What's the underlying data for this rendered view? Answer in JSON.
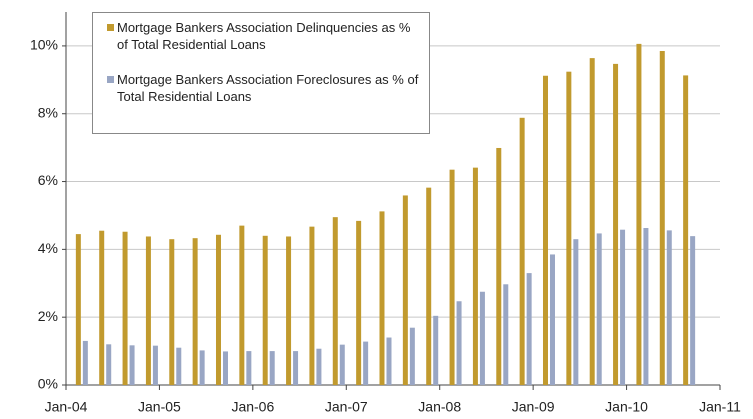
{
  "chart_data": {
    "type": "bar",
    "categories": [
      null,
      null,
      null,
      null,
      null,
      null,
      null,
      null,
      null,
      null,
      null,
      null,
      null,
      null,
      null,
      null,
      null,
      null,
      null,
      null,
      null,
      null,
      null,
      null,
      null,
      null,
      null
    ],
    "series": [
      {
        "name": "Mortgage Bankers Association Delinquencies as % of Total Residential Loans",
        "color": "#c19a2e",
        "values": [
          4.45,
          4.55,
          4.52,
          4.38,
          4.3,
          4.33,
          4.43,
          4.7,
          4.4,
          4.38,
          4.67,
          4.95,
          4.84,
          5.12,
          5.59,
          5.82,
          6.35,
          6.41,
          6.99,
          7.88,
          9.12,
          9.24,
          9.64,
          9.47,
          10.06,
          9.85,
          9.13
        ]
      },
      {
        "name": "Mortgage Bankers Association Foreclosures as % of Total Residential Loans",
        "color": "#99a6c4",
        "values": [
          1.3,
          1.2,
          1.17,
          1.16,
          1.1,
          1.02,
          0.99,
          1.0,
          1.0,
          1.0,
          1.07,
          1.19,
          1.28,
          1.4,
          1.69,
          2.04,
          2.47,
          2.75,
          2.97,
          3.3,
          3.85,
          4.3,
          4.47,
          4.58,
          4.63,
          4.56,
          4.39
        ]
      }
    ],
    "ylim": [
      0,
      11
    ],
    "yticks": [
      {
        "value": 0,
        "label": "0%"
      },
      {
        "value": 2,
        "label": "2%"
      },
      {
        "value": 4,
        "label": "4%"
      },
      {
        "value": 6,
        "label": "6%"
      },
      {
        "value": 8,
        "label": "8%"
      },
      {
        "value": 10,
        "label": "10%"
      }
    ],
    "xticks": [
      "Jan-04",
      "Jan-05",
      "Jan-06",
      "Jan-07",
      "Jan-08",
      "Jan-09",
      "Jan-10",
      "Jan-11"
    ],
    "grid": true
  }
}
